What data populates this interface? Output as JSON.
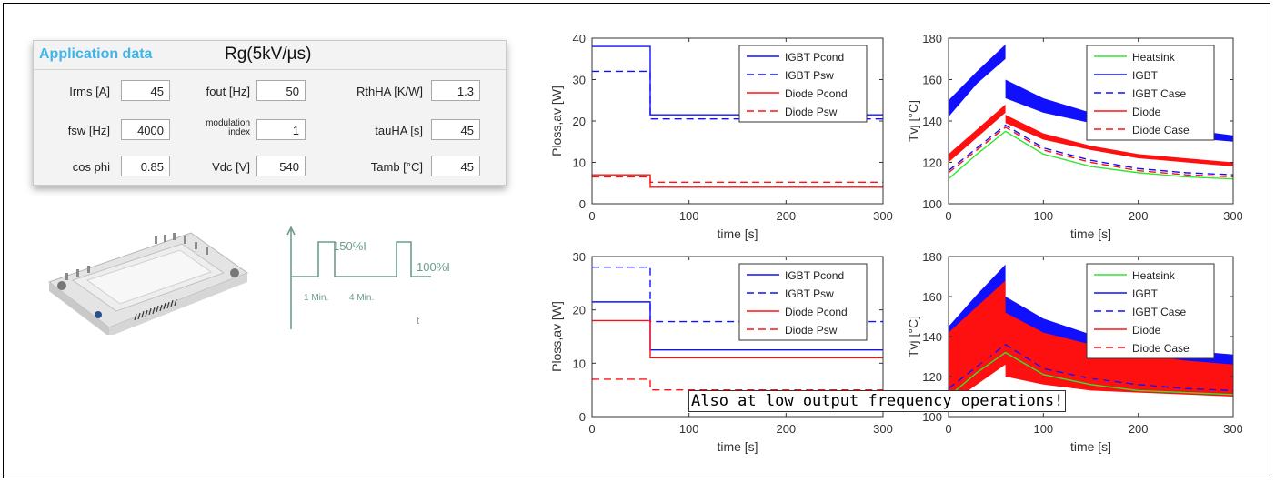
{
  "app_data": {
    "title": "Application data",
    "subtitle": "Rg(5kV/µs)",
    "fields": [
      {
        "label": "Irms [A]",
        "value": "45"
      },
      {
        "label": "fout [Hz]",
        "value": "50"
      },
      {
        "label": "RthHA [K/W]",
        "value": "1.3"
      },
      {
        "label": "fsw [Hz]",
        "value": "4000"
      },
      {
        "label": "modulation index",
        "label_lines": [
          "modulation",
          "index"
        ],
        "value": "1"
      },
      {
        "label": "tauHA [s]",
        "value": "45"
      },
      {
        "label": "cos phi",
        "value": "0.85"
      },
      {
        "label": "Vdc [V]",
        "value": "540"
      },
      {
        "label": "Tamb [°C]",
        "value": "45"
      }
    ]
  },
  "profile": {
    "peak_label": "150%I",
    "base_label": "100%I",
    "dur1": "1 Min.",
    "dur2": "4 Min.",
    "t_label": "t",
    "color": "#6b9e8a"
  },
  "note": "Also at low output frequency operations!",
  "colors": {
    "green": "#2ee82e",
    "blue": "#1010ff",
    "red": "#ff1010"
  },
  "chart_data": [
    {
      "type": "line",
      "xlabel": "time [s]",
      "ylabel": "Ploss,av [W]",
      "xlim": [
        0,
        300
      ],
      "ylim": [
        0,
        40
      ],
      "xticks": [
        0,
        100,
        200,
        300
      ],
      "yticks": [
        0,
        10,
        20,
        30,
        40
      ],
      "legend": [
        "IGBT Pcond",
        "IGBT Psw",
        "Diode Pcond",
        "Diode Psw"
      ],
      "series": [
        {
          "name": "IGBT Pcond",
          "color": "blue",
          "dash": false,
          "x": [
            0,
            60,
            60,
            300
          ],
          "y": [
            38,
            38,
            21.5,
            21.5
          ]
        },
        {
          "name": "IGBT Psw",
          "color": "blue",
          "dash": true,
          "x": [
            0,
            60,
            60,
            300
          ],
          "y": [
            32,
            32,
            20.5,
            20.5
          ]
        },
        {
          "name": "Diode Pcond",
          "color": "red",
          "dash": false,
          "x": [
            0,
            60,
            60,
            300
          ],
          "y": [
            7,
            7,
            4,
            4
          ]
        },
        {
          "name": "Diode Psw",
          "color": "red",
          "dash": true,
          "x": [
            0,
            60,
            60,
            300
          ],
          "y": [
            6.5,
            6.5,
            5.2,
            5.2
          ]
        }
      ]
    },
    {
      "type": "area",
      "xlabel": "time [s]",
      "ylabel": "Tvj [°C]",
      "xlim": [
        0,
        300
      ],
      "ylim": [
        100,
        180
      ],
      "xticks": [
        0,
        100,
        200,
        300
      ],
      "yticks": [
        100,
        120,
        140,
        160,
        180
      ],
      "legend": [
        "Heatsink",
        "IGBT",
        "IGBT Case",
        "Diode",
        "Diode Case"
      ],
      "bands": [
        {
          "name": "IGBT",
          "color": "blue",
          "x": [
            0,
            30,
            60,
            60,
            100,
            150,
            200,
            250,
            300
          ],
          "lower": [
            142,
            158,
            170,
            151,
            144,
            139,
            135,
            132,
            130
          ],
          "upper": [
            150,
            164,
            177,
            160,
            151,
            144,
            139,
            136,
            133
          ]
        },
        {
          "name": "Diode",
          "color": "red",
          "x": [
            0,
            30,
            60,
            60,
            100,
            150,
            200,
            250,
            300
          ],
          "lower": [
            120,
            132,
            144,
            139,
            131,
            126,
            122,
            120,
            118
          ],
          "upper": [
            124,
            136,
            148,
            143,
            134,
            128,
            124,
            122,
            120
          ]
        }
      ],
      "series": [
        {
          "name": "Heatsink",
          "color": "green",
          "dash": false,
          "x": [
            0,
            30,
            60,
            100,
            150,
            200,
            250,
            300
          ],
          "y": [
            112,
            124,
            135,
            124,
            118,
            115,
            113,
            112
          ]
        },
        {
          "name": "IGBT Case",
          "color": "blue",
          "dash": true,
          "x": [
            0,
            30,
            60,
            100,
            150,
            200,
            250,
            300
          ],
          "y": [
            116,
            127,
            138,
            127,
            121,
            117,
            115,
            114
          ]
        },
        {
          "name": "Diode Case",
          "color": "red",
          "dash": true,
          "x": [
            0,
            30,
            60,
            100,
            150,
            200,
            250,
            300
          ],
          "y": [
            115,
            126,
            137,
            126,
            120,
            116,
            114,
            113
          ]
        }
      ]
    },
    {
      "type": "line",
      "xlabel": "time [s]",
      "ylabel": "Ploss,av [W]",
      "xlim": [
        0,
        300
      ],
      "ylim": [
        0,
        30
      ],
      "xticks": [
        0,
        100,
        200,
        300
      ],
      "yticks": [
        0,
        10,
        20,
        30
      ],
      "legend": [
        "IGBT Pcond",
        "IGBT Psw",
        "Diode Pcond",
        "Diode Psw"
      ],
      "series": [
        {
          "name": "IGBT Pcond",
          "color": "blue",
          "dash": false,
          "x": [
            0,
            60,
            60,
            300
          ],
          "y": [
            21.5,
            21.5,
            12.5,
            12.5
          ]
        },
        {
          "name": "IGBT Psw",
          "color": "blue",
          "dash": true,
          "x": [
            0,
            60,
            60,
            300
          ],
          "y": [
            28,
            28,
            17.8,
            17.8
          ]
        },
        {
          "name": "Diode Pcond",
          "color": "red",
          "dash": false,
          "x": [
            0,
            60,
            60,
            300
          ],
          "y": [
            18,
            18,
            11,
            11
          ]
        },
        {
          "name": "Diode Psw",
          "color": "red",
          "dash": true,
          "x": [
            0,
            60,
            60,
            300
          ],
          "y": [
            7,
            7,
            5,
            5
          ]
        }
      ]
    },
    {
      "type": "area",
      "xlabel": "time [s]",
      "ylabel": "Tvj [°C]",
      "xlim": [
        0,
        300
      ],
      "ylim": [
        100,
        180
      ],
      "xticks": [
        0,
        100,
        200,
        300
      ],
      "yticks": [
        100,
        120,
        140,
        160,
        180
      ],
      "legend": [
        "Heatsink",
        "IGBT",
        "IGBT Case",
        "Diode",
        "Diode Case"
      ],
      "bands": [
        {
          "name": "IGBT",
          "color": "blue",
          "x": [
            0,
            30,
            60,
            60,
            100,
            150,
            200,
            250,
            300
          ],
          "lower": [
            108,
            118,
            130,
            124,
            120,
            117,
            115,
            114,
            113
          ],
          "upper": [
            145,
            161,
            176,
            160,
            149,
            141,
            136,
            133,
            131
          ]
        },
        {
          "name": "Diode",
          "color": "red",
          "x": [
            0,
            30,
            60,
            60,
            100,
            150,
            200,
            250,
            300
          ],
          "lower": [
            106,
            116,
            126,
            120,
            116,
            113,
            112,
            111,
            110
          ],
          "upper": [
            142,
            155,
            168,
            152,
            142,
            136,
            131,
            128,
            126
          ]
        }
      ],
      "series": [
        {
          "name": "Heatsink",
          "color": "green",
          "dash": false,
          "x": [
            0,
            30,
            60,
            100,
            150,
            200,
            250,
            300
          ],
          "y": [
            110,
            122,
            132,
            121,
            116,
            113,
            112,
            111
          ]
        },
        {
          "name": "IGBT Case",
          "color": "blue",
          "dash": true,
          "x": [
            0,
            30,
            60,
            100,
            150,
            200,
            250,
            300
          ],
          "y": [
            114,
            125,
            136,
            124,
            119,
            116,
            114,
            113
          ]
        },
        {
          "name": "Diode Case",
          "color": "red",
          "dash": true,
          "x": [
            0,
            30,
            60,
            100,
            150,
            200,
            250,
            300
          ],
          "y": [
            113,
            124,
            138,
            125,
            119,
            115,
            113,
            112
          ]
        }
      ]
    }
  ]
}
